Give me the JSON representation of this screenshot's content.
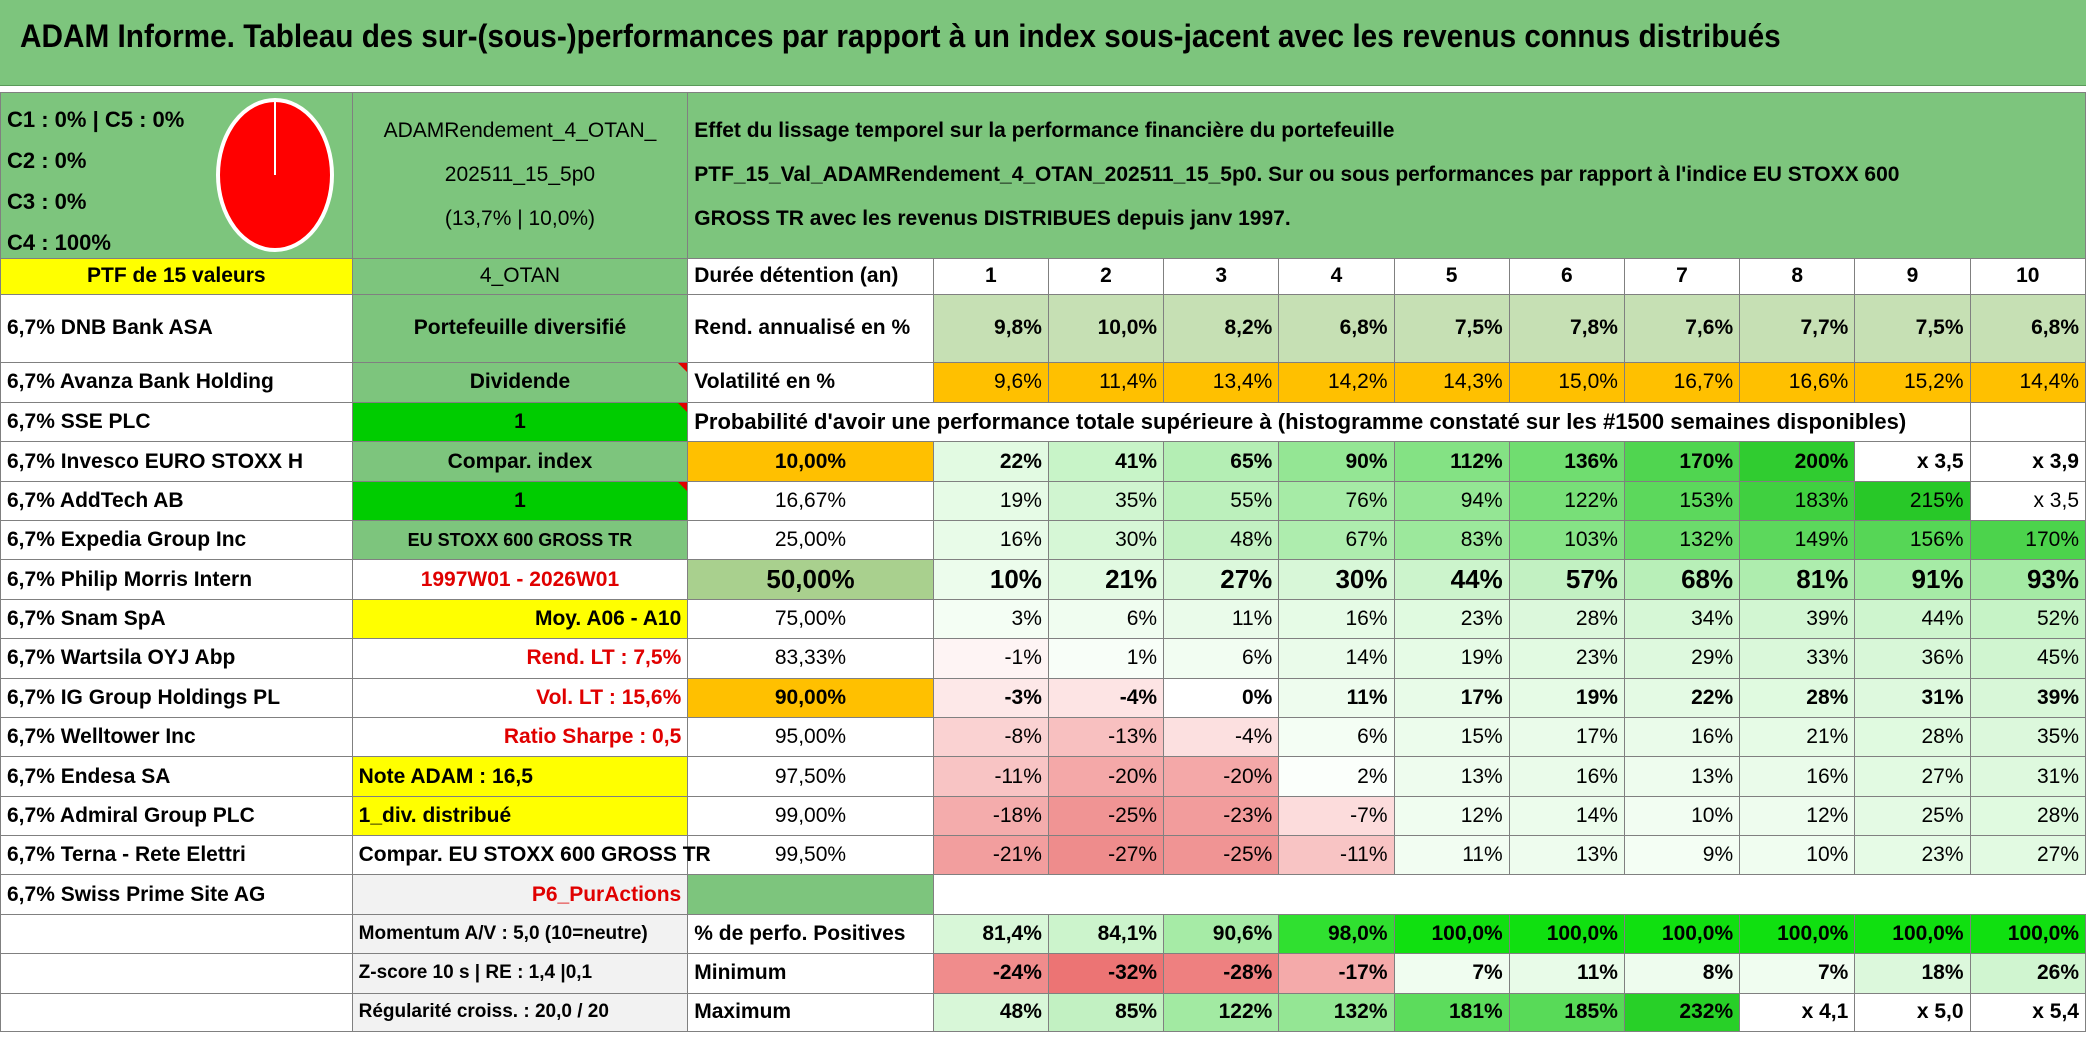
{
  "title": "ADAM Informe. Tableau des sur-(sous-)performances par rapport à un index sous-jacent avec les revenus connus distribués",
  "legend": [
    "C1 : 0% | C5 : 0%",
    "C2 : 0%",
    "C3 : 0%",
    "C4 : 100%"
  ],
  "pie": {
    "label": "C4",
    "value": 100,
    "color": "#ff0000"
  },
  "portfolio_name": [
    "ADAMRendement_4_OTAN_",
    "202511_15_5p0",
    "(13,7% | 10,0%)"
  ],
  "effect_text": [
    "Effet du lissage temporel sur la performance financière du portefeuille",
    "PTF_15_Val_ADAMRendement_4_OTAN_202511_15_5p0. Sur ou sous performances par rapport à l'indice EU STOXX 600",
    "GROSS TR avec les revenus DISTRIBUES depuis janv 1997."
  ],
  "ptf_header": "PTF de 15 valeurs",
  "strategy_code": "4_OTAN",
  "holdings": [
    "6,7% DNB Bank ASA",
    "6,7% Avanza Bank Holding",
    "6,7% SSE PLC",
    "6,7% Invesco EURO STOXX H",
    "6,7% AddTech AB",
    "6,7% Expedia Group Inc",
    "6,7% Philip Morris Intern",
    "6,7% Snam SpA",
    "6,7% Wartsila OYJ Abp",
    "6,7% IG Group Holdings PL",
    "6,7% Welltower Inc",
    "6,7% Endesa SA",
    "6,7% Admiral Group PLC",
    "6,7% Terna - Rete Elettri",
    "6,7% Swiss Prime Site AG"
  ],
  "info": {
    "diversified": "Portefeuille diversifié",
    "dividend": "Dividende",
    "dividend_value": "1",
    "compar_index": "Compar. index",
    "compar_value": "1",
    "index_name": "EU STOXX 600 GROSS TR",
    "period": "1997W01 - 2026W01",
    "avg": "Moy. A06 - A10",
    "rend_lt": "Rend. LT : 7,5%",
    "vol_lt": "Vol. LT : 15,6%",
    "sharpe": "Ratio Sharpe : 0,5",
    "note": "Note ADAM : 16,5",
    "div_distrib": "1_div. distribué",
    "compar_full": "Compar. EU STOXX 600 GROSS TR",
    "sheet": "P6_PurActions",
    "momentum": "Momentum A/V : 5,0 (10=neutre)",
    "zscore": "Z-score 10 s | RE : 1,4 |0,1",
    "regularity": "Régularité croiss. : 20,0 / 20"
  },
  "row_labels": {
    "duration": "Durée détention (an)",
    "rend": "Rend. annualisé en %",
    "vol": "Volatilité en %",
    "prob": "Probabilité d'avoir une performance totale supérieure à (histogramme constaté sur les #1500 semaines disponibles)",
    "pos": "% de perfo. Positives",
    "min": "Minimum",
    "max": "Maximum"
  },
  "years": [
    "1",
    "2",
    "3",
    "4",
    "5",
    "6",
    "7",
    "8",
    "9",
    "10"
  ],
  "rend": [
    "9,8%",
    "10,0%",
    "8,2%",
    "6,8%",
    "7,5%",
    "7,8%",
    "7,6%",
    "7,7%",
    "7,5%",
    "6,8%"
  ],
  "vol": [
    "9,6%",
    "11,4%",
    "13,4%",
    "14,2%",
    "14,3%",
    "15,0%",
    "16,7%",
    "16,6%",
    "15,2%",
    "14,4%"
  ],
  "prob_rows": [
    {
      "p": "10,00%",
      "v": [
        "22%",
        "41%",
        "65%",
        "90%",
        "112%",
        "136%",
        "170%",
        "200%",
        "x 3,5",
        "x 3,9"
      ]
    },
    {
      "p": "16,67%",
      "v": [
        "19%",
        "35%",
        "55%",
        "76%",
        "94%",
        "122%",
        "153%",
        "183%",
        "215%",
        "x 3,5"
      ]
    },
    {
      "p": "25,00%",
      "v": [
        "16%",
        "30%",
        "48%",
        "67%",
        "83%",
        "103%",
        "132%",
        "149%",
        "156%",
        "170%"
      ]
    },
    {
      "p": "50,00%",
      "v": [
        "10%",
        "21%",
        "27%",
        "30%",
        "44%",
        "57%",
        "68%",
        "81%",
        "91%",
        "93%"
      ]
    },
    {
      "p": "75,00%",
      "v": [
        "3%",
        "6%",
        "11%",
        "16%",
        "23%",
        "28%",
        "34%",
        "39%",
        "44%",
        "52%"
      ]
    },
    {
      "p": "83,33%",
      "v": [
        "-1%",
        "1%",
        "6%",
        "14%",
        "19%",
        "23%",
        "29%",
        "33%",
        "36%",
        "45%"
      ]
    },
    {
      "p": "90,00%",
      "v": [
        "-3%",
        "-4%",
        "0%",
        "11%",
        "17%",
        "19%",
        "22%",
        "28%",
        "31%",
        "39%"
      ]
    },
    {
      "p": "95,00%",
      "v": [
        "-8%",
        "-13%",
        "-4%",
        "6%",
        "15%",
        "17%",
        "16%",
        "21%",
        "28%",
        "35%"
      ]
    },
    {
      "p": "97,50%",
      "v": [
        "-11%",
        "-20%",
        "-20%",
        "2%",
        "13%",
        "16%",
        "13%",
        "16%",
        "27%",
        "31%"
      ]
    },
    {
      "p": "99,00%",
      "v": [
        "-18%",
        "-25%",
        "-23%",
        "-7%",
        "12%",
        "14%",
        "10%",
        "12%",
        "25%",
        "28%"
      ]
    },
    {
      "p": "99,50%",
      "v": [
        "-21%",
        "-27%",
        "-25%",
        "-11%",
        "11%",
        "13%",
        "9%",
        "10%",
        "23%",
        "27%"
      ]
    }
  ],
  "pos": [
    "81,4%",
    "84,1%",
    "90,6%",
    "98,0%",
    "100,0%",
    "100,0%",
    "100,0%",
    "100,0%",
    "100,0%",
    "100,0%"
  ],
  "min": [
    "-24%",
    "-32%",
    "-28%",
    "-17%",
    "7%",
    "11%",
    "8%",
    "7%",
    "18%",
    "26%"
  ],
  "max": [
    "48%",
    "85%",
    "122%",
    "132%",
    "181%",
    "185%",
    "232%",
    "x 4,1",
    "x 5,0",
    "x 5,4"
  ],
  "colors": {
    "header_green": "#7DC57D",
    "yellow": "#FFFF00",
    "bright_green": "#00CC00",
    "orange": "#FFC000",
    "red_text": "#E00000"
  }
}
